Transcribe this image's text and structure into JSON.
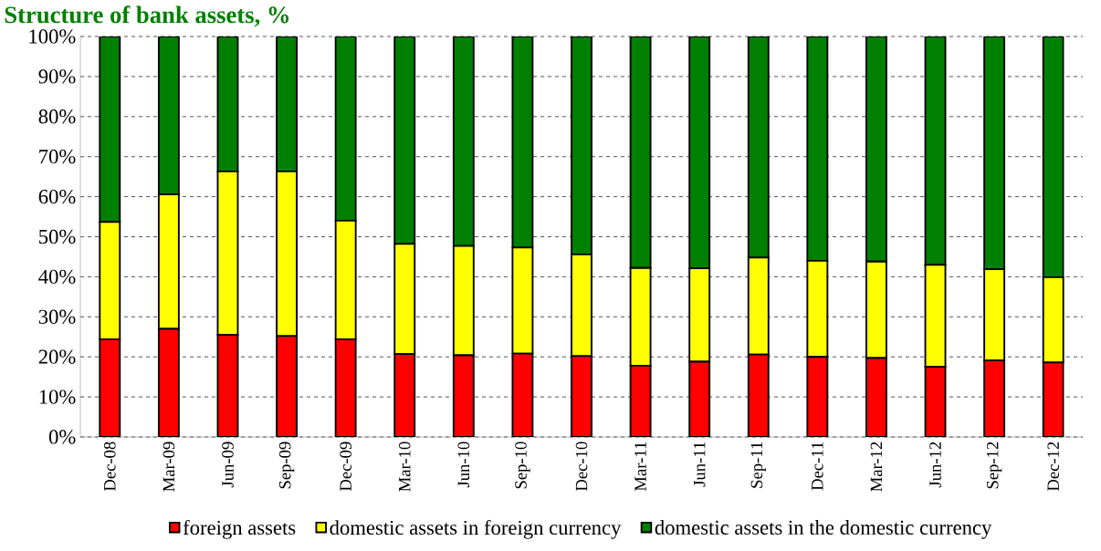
{
  "chart_data": {
    "type": "bar",
    "stacked": true,
    "title": "Structure of bank assets, %",
    "categories": [
      "Dec-08",
      "Mar-09",
      "Jun-09",
      "Sep-09",
      "Dec-09",
      "Mar-10",
      "Jun-10",
      "Sep-10",
      "Dec-10",
      "Mar-11",
      "Jun-11",
      "Sep-11",
      "Dec-11",
      "Mar-12",
      "Jun-12",
      "Sep-12",
      "Dec-12"
    ],
    "series": [
      {
        "name": "foreign assets",
        "color": "#ff0000",
        "values": [
          24.4,
          27.0,
          25.5,
          25.2,
          24.4,
          20.7,
          20.4,
          20.8,
          20.2,
          17.8,
          18.8,
          20.6,
          20.0,
          19.7,
          17.5,
          19.1,
          18.6
        ]
      },
      {
        "name": "domestic assets in foreign currency",
        "color": "#ffff00",
        "values": [
          29.3,
          33.6,
          40.8,
          41.1,
          29.6,
          27.5,
          27.3,
          26.5,
          25.4,
          24.4,
          23.3,
          24.2,
          24.0,
          24.1,
          25.5,
          22.8,
          21.3
        ]
      },
      {
        "name": "domestic assets in the domestic currency",
        "color": "#008000",
        "values": [
          46.3,
          39.4,
          33.7,
          33.7,
          46.0,
          51.8,
          52.3,
          52.7,
          54.4,
          57.8,
          57.9,
          55.2,
          56.0,
          56.2,
          57.0,
          58.1,
          60.1
        ]
      }
    ],
    "ylim": [
      0,
      100
    ],
    "yticks": [
      {
        "value": 0,
        "label": "0%"
      },
      {
        "value": 10,
        "label": "10%"
      },
      {
        "value": 20,
        "label": "20%"
      },
      {
        "value": 30,
        "label": "30%"
      },
      {
        "value": 40,
        "label": "40%"
      },
      {
        "value": 50,
        "label": "50%"
      },
      {
        "value": 60,
        "label": "60%"
      },
      {
        "value": 70,
        "label": "70%"
      },
      {
        "value": 80,
        "label": "80%"
      },
      {
        "value": 90,
        "label": "90%"
      },
      {
        "value": 100,
        "label": "100%"
      }
    ],
    "grid": "y",
    "legend": "bottom"
  }
}
